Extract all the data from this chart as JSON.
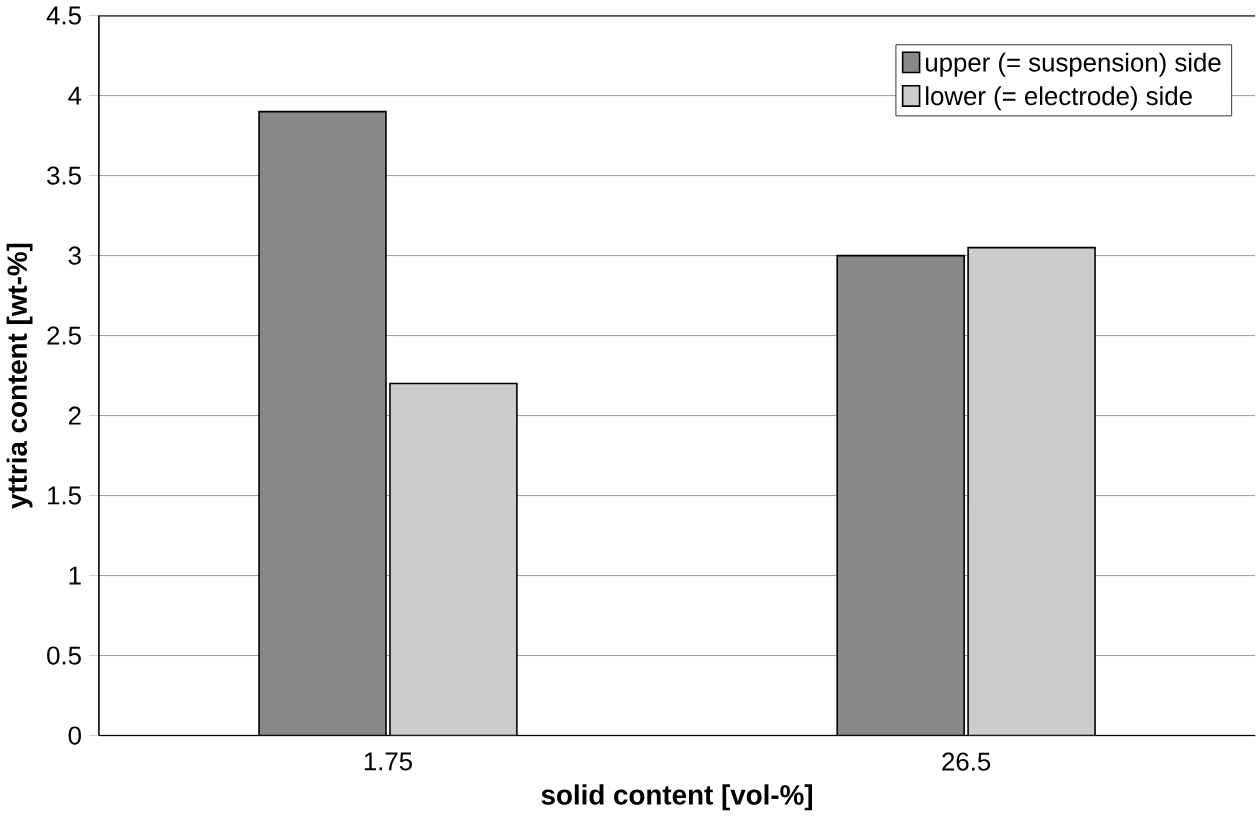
{
  "chart_data": {
    "type": "bar",
    "xlabel": "solid content [vol-%]",
    "ylabel": "yttria content [wt-%]",
    "categories": [
      "1.75",
      "26.5"
    ],
    "series": [
      {
        "name": "upper (= suspension) side",
        "color": "#888888",
        "values": [
          3.9,
          3.0
        ]
      },
      {
        "name": "lower  (= electrode) side",
        "color": "#cccccc",
        "values": [
          2.2,
          3.05
        ]
      }
    ],
    "ylim": [
      0,
      4.5
    ],
    "yticks": [
      0,
      0.5,
      1,
      1.5,
      2,
      2.5,
      3,
      3.5,
      4,
      4.5
    ],
    "grid": "y",
    "legend": "top right"
  }
}
